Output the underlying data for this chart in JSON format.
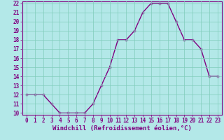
{
  "x": [
    0,
    1,
    2,
    3,
    4,
    5,
    6,
    7,
    8,
    9,
    10,
    11,
    12,
    13,
    14,
    15,
    16,
    17,
    18,
    19,
    20,
    21,
    22,
    23
  ],
  "y": [
    12,
    12,
    12,
    11,
    10,
    10,
    10,
    10,
    11,
    13,
    15,
    18,
    18,
    19,
    21,
    22,
    22,
    22,
    20,
    18,
    18,
    17,
    14,
    14
  ],
  "line_color": "#800080",
  "marker": "+",
  "bg_color": "#b3e8e8",
  "grid_color": "#80ccbb",
  "xlabel": "Windchill (Refroidissement éolien,°C)",
  "ylim": [
    10,
    22
  ],
  "xlim": [
    -0.5,
    23.5
  ],
  "yticks": [
    10,
    11,
    12,
    13,
    14,
    15,
    16,
    17,
    18,
    19,
    20,
    21,
    22
  ],
  "xticks": [
    0,
    1,
    2,
    3,
    4,
    5,
    6,
    7,
    8,
    9,
    10,
    11,
    12,
    13,
    14,
    15,
    16,
    17,
    18,
    19,
    20,
    21,
    22,
    23
  ],
  "xlabel_fontsize": 6.5,
  "tick_fontsize": 5.5,
  "line_width": 1.0,
  "marker_size": 3.5,
  "marker_edge_width": 1.0
}
